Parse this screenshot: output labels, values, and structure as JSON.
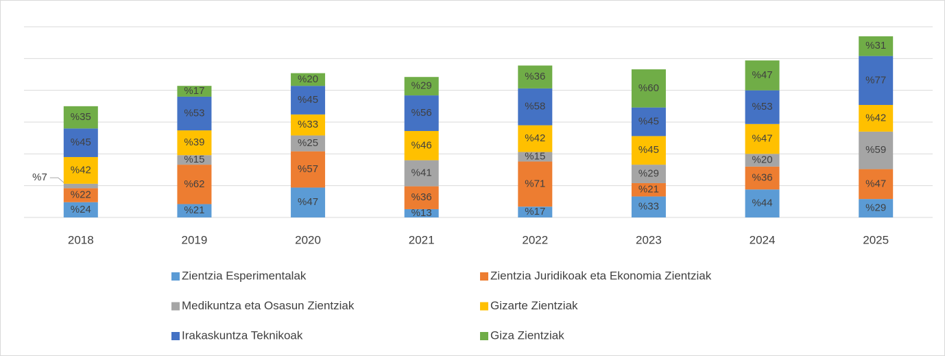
{
  "chart_data": {
    "type": "stacked_bar",
    "categories": [
      "2018",
      "2019",
      "2020",
      "2021",
      "2022",
      "2023",
      "2024",
      "2025"
    ],
    "series": [
      {
        "name": "Zientzia Esperimentalak",
        "color": "#5b9bd5",
        "values": [
          24,
          21,
          47,
          13,
          17,
          33,
          44,
          29
        ],
        "value_labels": [
          "%24",
          "%21",
          "%47",
          "%13",
          "%17",
          "%33",
          "%44",
          "%29"
        ]
      },
      {
        "name": "Zientzia Juridikoak eta Ekonomia Zientziak",
        "color": "#ed7d31",
        "values": [
          22,
          62,
          57,
          36,
          71,
          21,
          36,
          47
        ],
        "value_labels": [
          "%22",
          "%62",
          "%57",
          "%36",
          "%71",
          "%21",
          "%36",
          "%47"
        ]
      },
      {
        "name": "Medikuntza eta Osasun Zientziak",
        "color": "#a5a5a5",
        "values": [
          7,
          15,
          25,
          41,
          15,
          29,
          20,
          59
        ],
        "value_labels": [
          "%7",
          "%15",
          "%25",
          "%41",
          "%15",
          "%29",
          "%20",
          "%59"
        ]
      },
      {
        "name": "Gizarte Zientziak",
        "color": "#ffc000",
        "values": [
          42,
          39,
          33,
          46,
          42,
          45,
          47,
          42
        ],
        "value_labels": [
          "%42",
          "%39",
          "%33",
          "%46",
          "%42",
          "%45",
          "%47",
          "%42"
        ]
      },
      {
        "name": "Irakaskuntza Teknikoak",
        "color": "#4472c4",
        "values": [
          45,
          53,
          45,
          56,
          58,
          45,
          53,
          77
        ],
        "value_labels": [
          "%45",
          "%53",
          "%45",
          "%56",
          "%58",
          "%45",
          "%53",
          "%77"
        ]
      },
      {
        "name": "Giza Zientziak",
        "color": "#70ad47",
        "values": [
          35,
          17,
          20,
          29,
          36,
          60,
          47,
          31
        ],
        "value_labels": [
          "%35",
          "%17",
          "%20",
          "%29",
          "%36",
          "%60",
          "%47",
          "%31"
        ]
      }
    ],
    "ylim": [
      0,
      300
    ],
    "yticks": [
      0,
      50,
      100,
      150,
      200,
      250,
      300
    ],
    "grid": true,
    "legend": "bottom"
  }
}
